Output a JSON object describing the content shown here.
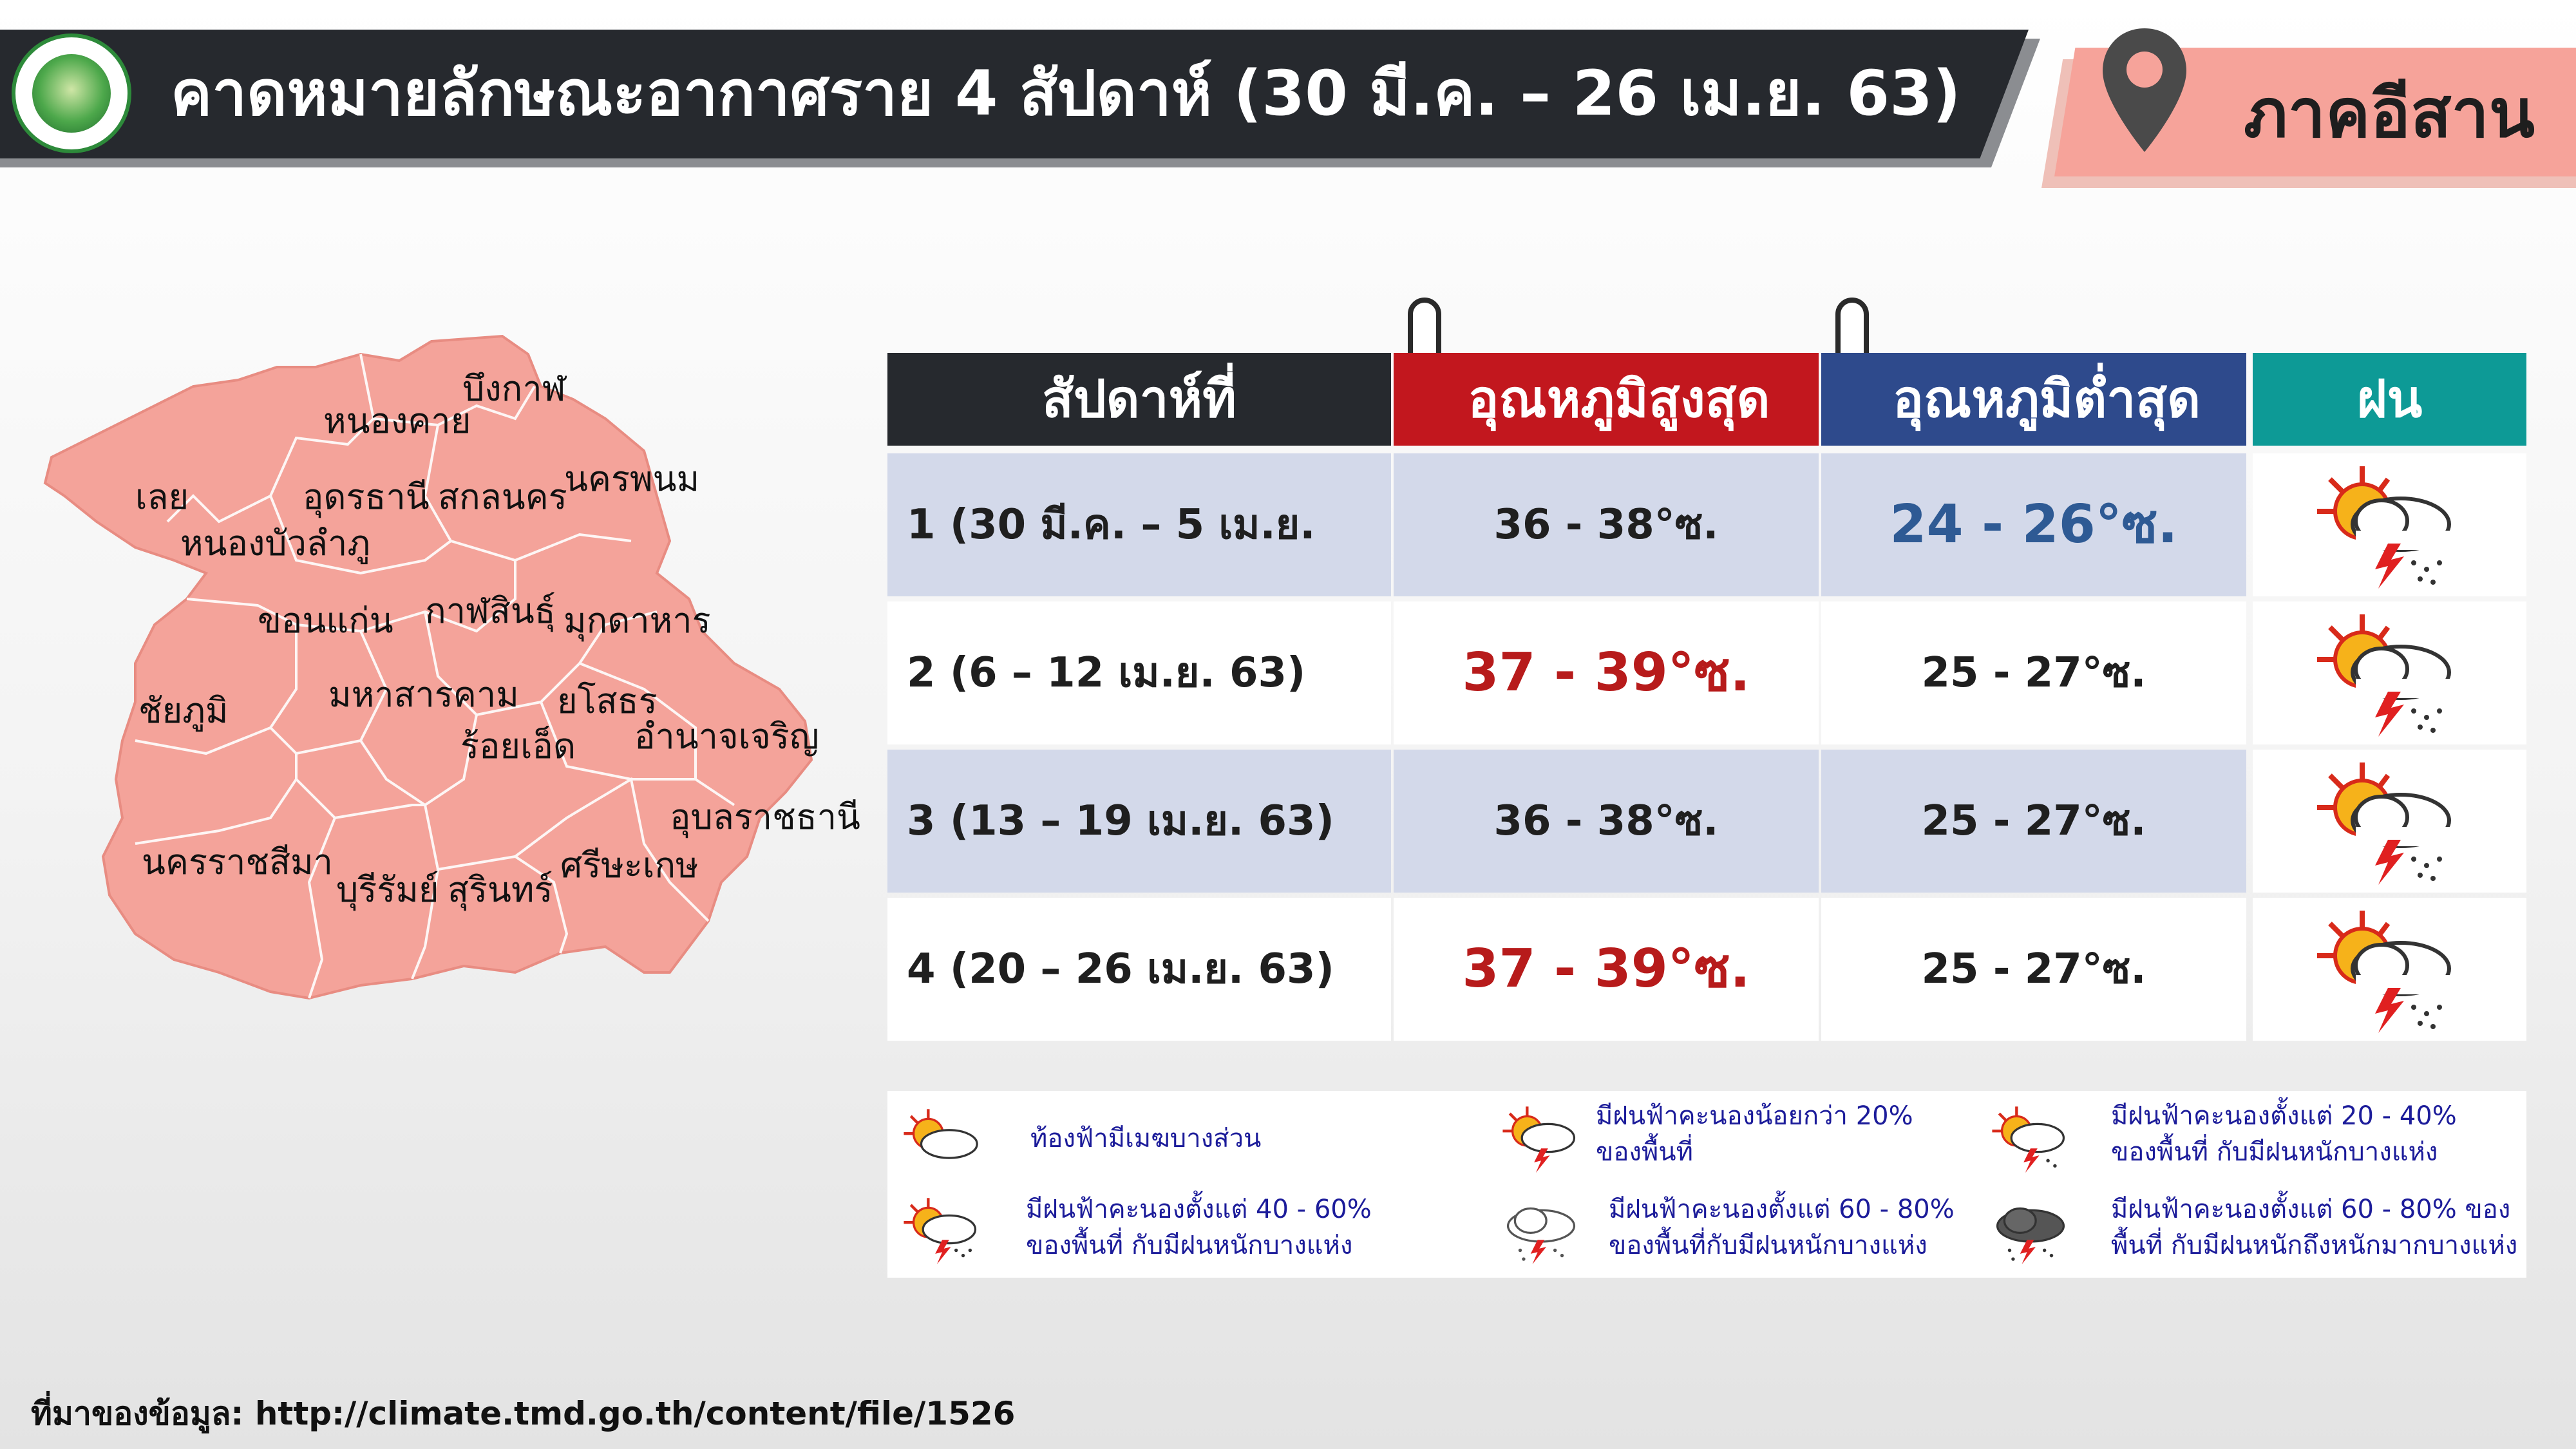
{
  "header": {
    "title": "คาดหมายลักษณะอากาศราย 4 สัปดาห์ (30 มี.ค. – 26 เม.ย. 63)",
    "region": "ภาคอีสาน",
    "pin_icon": "location-pin-icon",
    "logo_icon": "tmd-logo-icon"
  },
  "colors": {
    "header_bg": "#26292e",
    "region_tag": "#f6a39a",
    "map_fill": "#f4a39a",
    "col_week": "#26292e",
    "col_max": "#c2171e",
    "col_min": "#2e4a8c",
    "col_rain": "#0d9a96",
    "row_shade": "#d3d9ea",
    "hot_text": "#b71b1b",
    "cool_text": "#2e5a94"
  },
  "map": {
    "provinces": [
      "บึงกาฬ",
      "หนองคาย",
      "นครพนม",
      "เลย",
      "อุดรธานี",
      "สกลนคร",
      "หนองบัวลำภู",
      "ขอนแก่น",
      "กาฬสินธุ์",
      "มุกดาหาร",
      "ชัยภูมิ",
      "มหาสารคาม",
      "ยโสธร",
      "ร้อยเอ็ด",
      "อำนาจเจริญ",
      "อุบลราชธานี",
      "นครราชสีมา",
      "บุรีรัมย์",
      "สุรินทร์",
      "ศรีษะเกษ"
    ]
  },
  "table": {
    "headers": [
      "สัปดาห์ที่",
      "อุณหภูมิสูงสุด",
      "อุณหภูมิต่ำสุด",
      "ฝน"
    ],
    "rows": [
      {
        "week": "1 (30 มี.ค. – 5 เม.ย. 63)",
        "max": "36 - 38°ซ.",
        "min": "24 - 26°ซ.",
        "rain_icon": "thunderstorm-40-60-icon"
      },
      {
        "week": "2 (6 – 12 เม.ย. 63)",
        "max": "37 - 39°ซ.",
        "min": "25 - 27°ซ.",
        "rain_icon": "thunderstorm-40-60-icon"
      },
      {
        "week": "3 (13 – 19 เม.ย. 63)",
        "max": "36 - 38°ซ.",
        "min": "25 - 27°ซ.",
        "rain_icon": "thunderstorm-40-60-icon"
      },
      {
        "week": "4 (20 – 26 เม.ย. 63)",
        "max": "37 - 39°ซ.",
        "min": "25 - 27°ซ.",
        "rain_icon": "thunderstorm-40-60-icon"
      }
    ]
  },
  "legend": [
    {
      "icon": "partly-cloudy-icon",
      "lines": [
        "ท้องฟ้ามีเมฆบางส่วน"
      ]
    },
    {
      "icon": "thunderstorm-under-20-icon",
      "lines": [
        "มีฝนฟ้าคะนองน้อยกว่า 20%",
        "ของพื้นที่"
      ]
    },
    {
      "icon": "thunderstorm-20-40-icon",
      "lines": [
        "มีฝนฟ้าคะนองตั้งแต่ 20 - 40%",
        "ของพื้นที่ กับมีฝนหนักบางแห่ง"
      ]
    },
    {
      "icon": "thunderstorm-40-60-icon",
      "lines": [
        "มีฝนฟ้าคะนองตั้งแต่ 40 - 60%",
        "ของพื้นที่ กับมีฝนหนักบางแห่ง"
      ]
    },
    {
      "icon": "thunderstorm-60-80-icon",
      "lines": [
        "มีฝนฟ้าคะนองตั้งแต่ 60 - 80%",
        "ของพื้นที่กับมีฝนหนักบางแห่ง"
      ]
    },
    {
      "icon": "heavy-thunderstorm-60-80-icon",
      "lines": [
        "มีฝนฟ้าคะนองตั้งแต่ 60 - 80% ของ",
        "พื้นที่ กับมีฝนหนักถึงหนักมากบางแห่ง"
      ]
    }
  ],
  "source": "ที่มาของข้อมูล: http://climate.tmd.go.th/content/file/1526"
}
